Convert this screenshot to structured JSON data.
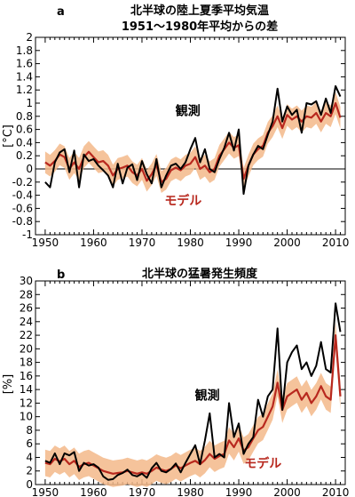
{
  "chart_data": [
    {
      "type": "line",
      "panel_letter": "a",
      "title": "北半球の陸上夏季平均気温",
      "subtitle": "1951〜1980年平均からの差",
      "ylabel": "[°C]",
      "xlim": [
        1948,
        2012
      ],
      "ylim": [
        -1,
        2
      ],
      "x_ticks": [
        1950,
        1960,
        1970,
        1980,
        1990,
        2000,
        2010
      ],
      "y_ticks": [
        -1,
        -0.8,
        -0.6,
        -0.4,
        -0.2,
        0,
        0.2,
        0.4,
        0.6,
        0.8,
        1,
        1.2,
        1.4,
        1.6,
        1.8,
        2
      ],
      "zero_line": true,
      "annotations": [
        {
          "text": "観測",
          "series": "obs",
          "x": 1979.5,
          "y": 0.82
        },
        {
          "text": "モデル",
          "series": "model",
          "x": 1978.5,
          "y": -0.55
        }
      ],
      "colors": {
        "obs": "#000000",
        "model": "#b8281e",
        "band": "#f3b98a"
      },
      "x": [
        1950,
        1951,
        1952,
        1953,
        1954,
        1955,
        1956,
        1957,
        1958,
        1959,
        1960,
        1961,
        1962,
        1963,
        1964,
        1965,
        1966,
        1967,
        1968,
        1969,
        1970,
        1971,
        1972,
        1973,
        1974,
        1975,
        1976,
        1977,
        1978,
        1979,
        1980,
        1981,
        1982,
        1983,
        1984,
        1985,
        1986,
        1987,
        1988,
        1989,
        1990,
        1991,
        1992,
        1993,
        1994,
        1995,
        1996,
        1997,
        1998,
        1999,
        2000,
        2001,
        2002,
        2003,
        2004,
        2005,
        2006,
        2007,
        2008,
        2009,
        2010,
        2011
      ],
      "series": [
        {
          "id": "obs",
          "values": [
            -0.2,
            -0.28,
            0.1,
            0.25,
            0.3,
            -0.05,
            0.28,
            -0.28,
            0.22,
            0.12,
            0.15,
            0.05,
            -0.02,
            -0.1,
            -0.28,
            0.08,
            -0.22,
            0.02,
            0.07,
            -0.17,
            0.12,
            -0.08,
            -0.22,
            0.15,
            -0.28,
            -0.1,
            0.05,
            0.08,
            0.0,
            0.1,
            0.3,
            0.47,
            0.1,
            0.3,
            0.0,
            -0.05,
            0.15,
            0.32,
            0.55,
            0.28,
            0.6,
            -0.38,
            0.05,
            0.22,
            0.35,
            0.3,
            0.52,
            0.72,
            1.22,
            0.72,
            0.95,
            0.82,
            0.9,
            0.55,
            1.0,
            0.98,
            1.03,
            0.82,
            1.07,
            0.85,
            1.26,
            1.1
          ]
        },
        {
          "id": "model",
          "values": [
            0.1,
            0.05,
            0.12,
            0.22,
            0.18,
            0.0,
            0.1,
            0.0,
            0.18,
            0.26,
            0.18,
            0.1,
            0.12,
            0.05,
            -0.1,
            0.0,
            0.02,
            0.05,
            -0.05,
            -0.1,
            0.0,
            -0.18,
            -0.08,
            0.06,
            -0.2,
            -0.15,
            -0.02,
            0.02,
            -0.02,
            0.05,
            0.08,
            0.18,
            0.0,
            0.05,
            -0.05,
            0.0,
            0.2,
            0.3,
            0.4,
            0.32,
            0.36,
            -0.15,
            0.05,
            0.22,
            0.3,
            0.35,
            0.55,
            0.65,
            0.8,
            0.62,
            0.82,
            0.75,
            0.8,
            0.72,
            0.8,
            0.78,
            0.85,
            0.72,
            0.85,
            0.8,
            1.0,
            0.78
          ]
        }
      ]
    },
    {
      "type": "line",
      "panel_letter": "b",
      "title": "北半球の猛暑発生頻度",
      "ylabel": "[%]",
      "xlim": [
        1948,
        2012
      ],
      "ylim": [
        0,
        30
      ],
      "x_ticks": [
        1950,
        1960,
        1970,
        1980,
        1990,
        2000,
        2010
      ],
      "y_ticks": [
        0,
        2,
        4,
        6,
        8,
        10,
        12,
        14,
        16,
        18,
        20,
        22,
        24,
        26,
        28,
        30
      ],
      "annotations": [
        {
          "text": "観測",
          "series": "obs",
          "x": 1983.5,
          "y": 12.5
        },
        {
          "text": "モデル",
          "series": "model",
          "x": 1995,
          "y": 2.5
        }
      ],
      "colors": {
        "obs": "#000000",
        "model": "#b8281e",
        "band": "#f3b98a"
      },
      "x": [
        1950,
        1951,
        1952,
        1953,
        1954,
        1955,
        1956,
        1957,
        1958,
        1959,
        1960,
        1961,
        1962,
        1963,
        1964,
        1965,
        1966,
        1967,
        1968,
        1969,
        1970,
        1971,
        1972,
        1973,
        1974,
        1975,
        1976,
        1977,
        1978,
        1979,
        1980,
        1981,
        1982,
        1983,
        1984,
        1985,
        1986,
        1987,
        1988,
        1989,
        1990,
        1991,
        1992,
        1993,
        1994,
        1995,
        1996,
        1997,
        1998,
        1999,
        2000,
        2001,
        2002,
        2003,
        2004,
        2005,
        2006,
        2007,
        2008,
        2009,
        2010,
        2011
      ],
      "series": [
        {
          "id": "obs",
          "values": [
            3.5,
            3.2,
            4.6,
            3.0,
            4.6,
            4.3,
            4.8,
            2.0,
            3.2,
            2.8,
            3.0,
            2.5,
            1.2,
            0.7,
            0.8,
            1.4,
            1.7,
            2.2,
            1.4,
            1.2,
            1.6,
            1.0,
            2.4,
            3.2,
            2.0,
            1.8,
            2.3,
            3.1,
            1.8,
            3.2,
            4.5,
            5.8,
            3.0,
            6.5,
            10.5,
            4.0,
            4.5,
            4.0,
            12.0,
            7.0,
            9.0,
            4.5,
            6.0,
            7.0,
            12.5,
            10.0,
            13.0,
            14.0,
            23.0,
            11.0,
            18.0,
            19.5,
            20.5,
            17.0,
            18.0,
            16.0,
            17.5,
            21.0,
            17.0,
            16.5,
            26.7,
            22.5
          ]
        },
        {
          "id": "model",
          "values": [
            3.2,
            3.0,
            3.8,
            3.4,
            3.8,
            3.0,
            3.5,
            2.6,
            3.0,
            3.2,
            2.8,
            2.4,
            2.0,
            1.8,
            1.6,
            1.7,
            1.8,
            2.0,
            1.8,
            1.6,
            1.8,
            1.6,
            2.0,
            2.5,
            2.2,
            2.0,
            2.3,
            2.8,
            2.4,
            2.8,
            3.2,
            3.5,
            3.0,
            3.6,
            4.5,
            3.8,
            4.2,
            4.5,
            6.5,
            5.5,
            6.8,
            5.0,
            5.5,
            6.8,
            8.0,
            8.5,
            10.0,
            11.5,
            15.0,
            11.0,
            13.0,
            13.5,
            14.0,
            12.5,
            13.5,
            12.0,
            13.0,
            14.5,
            13.0,
            12.5,
            22.0,
            13.0
          ]
        }
      ]
    }
  ]
}
